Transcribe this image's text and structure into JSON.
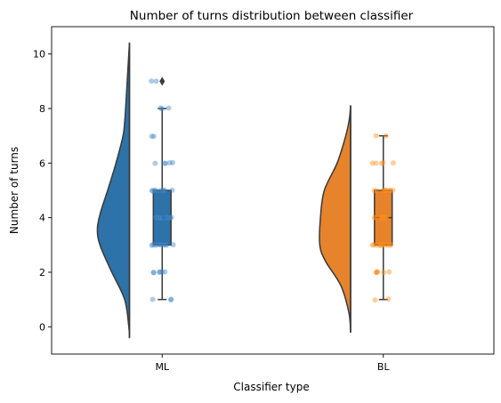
{
  "chart_data": {
    "type": "raincloud",
    "title": "Number of turns distribution between classifier",
    "xlabel": "Classifier type",
    "ylabel": "Number of turns",
    "ylim": [
      -1,
      11
    ],
    "yticks": [
      0,
      2,
      4,
      6,
      8,
      10
    ],
    "categories": [
      "ML",
      "BL"
    ],
    "colors": [
      "#2d72a8",
      "#e6832b"
    ],
    "point_colors": [
      "#3d85c6",
      "#ff8c1a"
    ],
    "series": [
      {
        "name": "ML",
        "box": {
          "whisker_low": 1,
          "q1": 3,
          "median": 4,
          "q3": 5,
          "whisker_high": 8
        },
        "outliers": [
          9
        ],
        "points": [
          1,
          1,
          1,
          2,
          2,
          2,
          2,
          2,
          2,
          3,
          3,
          3,
          3,
          3,
          3,
          3,
          3,
          3,
          3,
          4,
          4,
          4,
          4,
          4,
          4,
          4,
          4,
          4,
          4,
          4,
          4,
          5,
          5,
          5,
          5,
          5,
          5,
          5,
          5,
          5,
          6,
          6,
          6,
          6,
          6,
          7,
          7,
          8,
          8,
          8,
          9,
          9
        ],
        "density": [
          [
            -0.4,
            0
          ],
          [
            0,
            0.02
          ],
          [
            1,
            0.15
          ],
          [
            2,
            0.55
          ],
          [
            3,
            0.92
          ],
          [
            3.6,
            1.0
          ],
          [
            4.2,
            0.9
          ],
          [
            5,
            0.68
          ],
          [
            6,
            0.42
          ],
          [
            7,
            0.2
          ],
          [
            7.5,
            0.15
          ],
          [
            8,
            0.12
          ],
          [
            9,
            0.07
          ],
          [
            10,
            0.02
          ],
          [
            10.4,
            0
          ]
        ]
      },
      {
        "name": "BL",
        "box": {
          "whisker_low": 1,
          "q1": 3,
          "median": 4,
          "q3": 5,
          "whisker_high": 7
        },
        "outliers": [],
        "points": [
          1,
          1,
          2,
          2,
          2,
          2,
          2,
          2,
          3,
          3,
          3,
          3,
          3,
          3,
          3,
          3,
          3,
          3,
          3,
          3,
          4,
          4,
          4,
          4,
          4,
          4,
          4,
          4,
          4,
          4,
          4,
          5,
          5,
          5,
          5,
          5,
          5,
          5,
          5,
          5,
          6,
          6,
          6,
          6,
          6,
          7,
          7
        ],
        "density": [
          [
            -0.2,
            0
          ],
          [
            0.5,
            0.05
          ],
          [
            1.5,
            0.3
          ],
          [
            2.4,
            0.78
          ],
          [
            3,
            0.96
          ],
          [
            4,
            0.94
          ],
          [
            5,
            0.82
          ],
          [
            6,
            0.42
          ],
          [
            7,
            0.15
          ],
          [
            7.6,
            0.04
          ],
          [
            8.1,
            0
          ]
        ]
      }
    ]
  }
}
